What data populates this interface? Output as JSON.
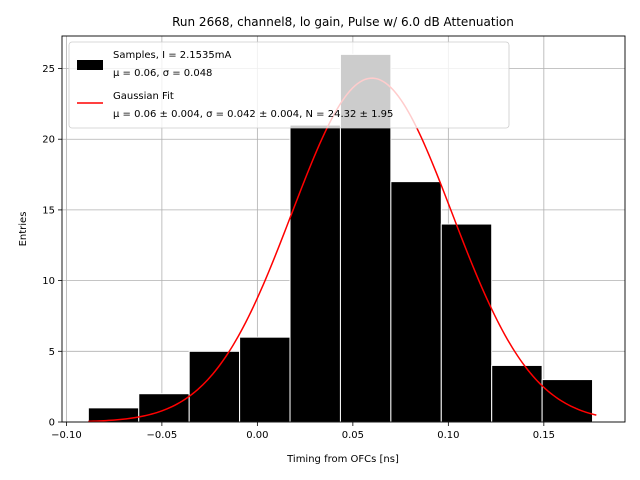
{
  "chart_data": {
    "type": "bar",
    "title": "Run 2668, channel8, lo gain, Pulse w/ 6.0 dB Attenuation",
    "xlabel": "Timing from OFCs [ns]",
    "ylabel": "Entries",
    "xlim": [
      -0.1023,
      0.1925
    ],
    "ylim": [
      0,
      27.3
    ],
    "xticks": [
      -0.1,
      -0.05,
      0.0,
      0.05,
      0.1,
      0.15
    ],
    "xtick_labels": [
      "−0.10",
      "−0.05",
      "0.00",
      "0.05",
      "0.10",
      "0.15"
    ],
    "yticks": [
      0,
      5,
      10,
      15,
      20,
      25
    ],
    "ytick_labels": [
      "0",
      "5",
      "10",
      "15",
      "20",
      "25"
    ],
    "grid": true,
    "legend_position": "top-left",
    "histogram": {
      "name": "Samples, I = 2.1535mA",
      "stats_text": "μ = 0.06, σ = 0.048",
      "bin_edges": [
        -0.0885,
        -0.0621,
        -0.0357,
        -0.0093,
        0.0171,
        0.0435,
        0.0699,
        0.0963,
        0.1227,
        0.1491,
        0.1755
      ],
      "values": [
        1,
        2,
        5,
        6,
        21,
        26,
        17,
        14,
        4,
        3
      ],
      "color": "#000000",
      "edgecolor": "#ffffff"
    },
    "fit": {
      "name": "Gaussian Fit",
      "params_text": "μ = 0.06 ± 0.004, σ = 0.042 ± 0.004, N = 24.32 ± 1.95",
      "mu": 0.06,
      "sigma": 0.042,
      "N": 24.32,
      "x_range": [
        -0.0885,
        0.1775
      ],
      "color": "#ff0000"
    }
  }
}
